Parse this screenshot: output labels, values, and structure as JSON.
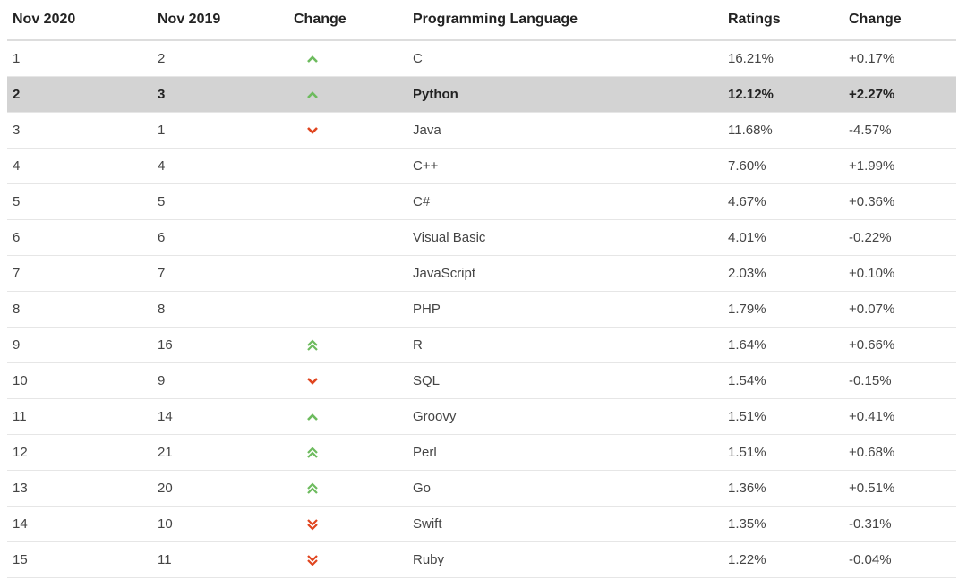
{
  "columns": [
    "Nov 2020",
    "Nov 2019",
    "Change",
    "Programming Language",
    "Ratings",
    "Change"
  ],
  "colors": {
    "up": "#6dbb5e",
    "down": "#e0451f",
    "highlight_row": "#d3d3d3"
  },
  "rows": [
    {
      "rank_2020": "1",
      "rank_2019": "2",
      "trend": "up",
      "language": "C",
      "rating": "16.21%",
      "change": "+0.17%"
    },
    {
      "rank_2020": "2",
      "rank_2019": "3",
      "trend": "up",
      "language": "Python",
      "rating": "12.12%",
      "change": "+2.27%",
      "highlighted": true
    },
    {
      "rank_2020": "3",
      "rank_2019": "1",
      "trend": "down",
      "language": "Java",
      "rating": "11.68%",
      "change": "-4.57%"
    },
    {
      "rank_2020": "4",
      "rank_2019": "4",
      "trend": "none",
      "language": "C++",
      "rating": "7.60%",
      "change": "+1.99%"
    },
    {
      "rank_2020": "5",
      "rank_2019": "5",
      "trend": "none",
      "language": "C#",
      "rating": "4.67%",
      "change": "+0.36%"
    },
    {
      "rank_2020": "6",
      "rank_2019": "6",
      "trend": "none",
      "language": "Visual Basic",
      "rating": "4.01%",
      "change": "-0.22%"
    },
    {
      "rank_2020": "7",
      "rank_2019": "7",
      "trend": "none",
      "language": "JavaScript",
      "rating": "2.03%",
      "change": "+0.10%"
    },
    {
      "rank_2020": "8",
      "rank_2019": "8",
      "trend": "none",
      "language": "PHP",
      "rating": "1.79%",
      "change": "+0.07%"
    },
    {
      "rank_2020": "9",
      "rank_2019": "16",
      "trend": "up-double",
      "language": "R",
      "rating": "1.64%",
      "change": "+0.66%"
    },
    {
      "rank_2020": "10",
      "rank_2019": "9",
      "trend": "down",
      "language": "SQL",
      "rating": "1.54%",
      "change": "-0.15%"
    },
    {
      "rank_2020": "11",
      "rank_2019": "14",
      "trend": "up",
      "language": "Groovy",
      "rating": "1.51%",
      "change": "+0.41%"
    },
    {
      "rank_2020": "12",
      "rank_2019": "21",
      "trend": "up-double",
      "language": "Perl",
      "rating": "1.51%",
      "change": "+0.68%"
    },
    {
      "rank_2020": "13",
      "rank_2019": "20",
      "trend": "up-double",
      "language": "Go",
      "rating": "1.36%",
      "change": "+0.51%"
    },
    {
      "rank_2020": "14",
      "rank_2019": "10",
      "trend": "down-double",
      "language": "Swift",
      "rating": "1.35%",
      "change": "-0.31%"
    },
    {
      "rank_2020": "15",
      "rank_2019": "11",
      "trend": "down-double",
      "language": "Ruby",
      "rating": "1.22%",
      "change": "-0.04%"
    }
  ]
}
